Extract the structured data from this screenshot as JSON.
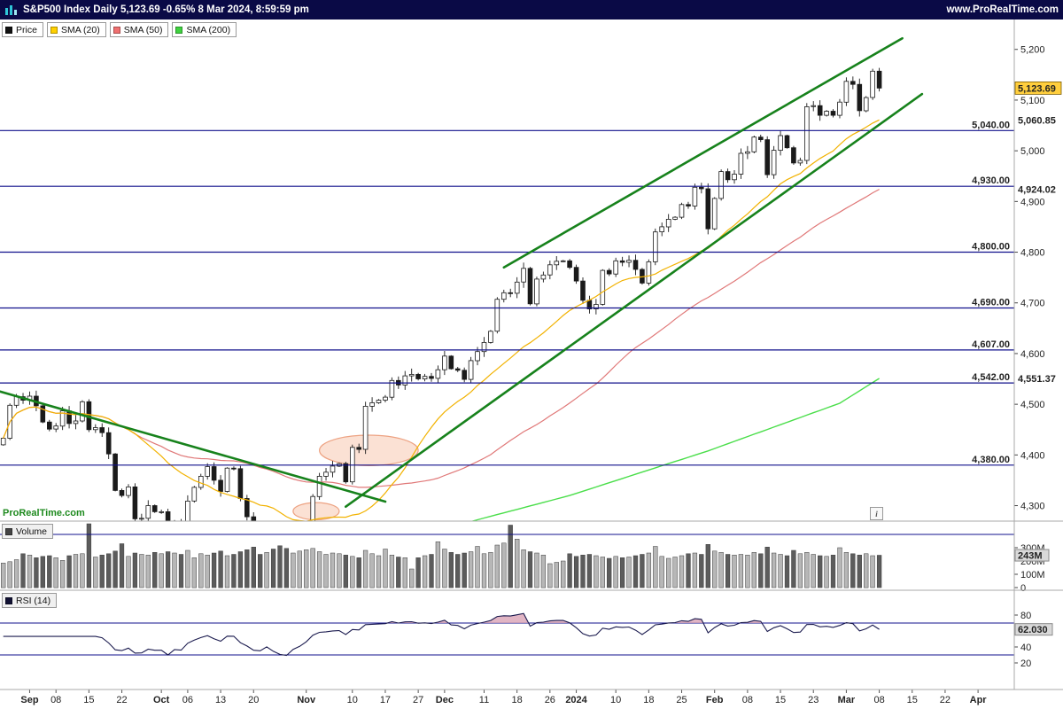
{
  "top_bar": {
    "title": "S&P500 Index Daily 5,123.69 -0.65% 8 Mar 2024, 8:59:59 pm",
    "website": "www.ProRealTime.com",
    "bg_color": "#0a0a46"
  },
  "legend": {
    "items": [
      {
        "label": "Price",
        "color": "#111111"
      },
      {
        "label": "SMA (20)",
        "color": "#ffd000"
      },
      {
        "label": "SMA (50)",
        "color": "#f07070"
      },
      {
        "label": "SMA (200)",
        "color": "#3fd23f"
      }
    ]
  },
  "watermark": "ProRealTime.com",
  "info_icon": "i",
  "price_axis": {
    "ticks": [
      {
        "label": "5,200",
        "price": 5200
      },
      {
        "label": "5,100",
        "price": 5100
      },
      {
        "label": "5,000",
        "price": 5000
      },
      {
        "label": "4,900",
        "price": 4900
      },
      {
        "label": "4,800",
        "price": 4800
      },
      {
        "label": "4,700",
        "price": 4700
      },
      {
        "label": "4,600",
        "price": 4600
      },
      {
        "label": "4,500",
        "price": 4500
      },
      {
        "label": "4,400",
        "price": 4400
      },
      {
        "label": "4,300",
        "price": 4300
      }
    ],
    "last_price_tag": {
      "label": "5,123.69",
      "price": 5123.69,
      "bg": "#ffce3d"
    },
    "indicator_tags": [
      {
        "label": "5,060.85",
        "price": 5060.85,
        "color": "#dd9404"
      },
      {
        "label": "4,924.02",
        "price": 4924.02,
        "color": "#e06060"
      },
      {
        "label": "4,551.37",
        "price": 4551.37,
        "color": "#dd9404"
      }
    ]
  },
  "levels": {
    "color": "#10108c",
    "items": [
      {
        "label": "5,040.00",
        "price": 5040
      },
      {
        "label": "4,930.00",
        "price": 4930
      },
      {
        "label": "4,800.00",
        "price": 4800
      },
      {
        "label": "4,690.00",
        "price": 4690
      },
      {
        "label": "4,607.00",
        "price": 4607
      },
      {
        "label": "4,542.00",
        "price": 4542
      },
      {
        "label": "4,380.00",
        "price": 4380
      }
    ]
  },
  "trendlines": {
    "color": "#17821c",
    "width": 2.6,
    "items": [
      {
        "name": "downtrend-line",
        "from": {
          "day": -0.5,
          "price": 4525
        },
        "to": {
          "day": 58,
          "price": 4308
        }
      },
      {
        "name": "channel-lower-line",
        "from": {
          "day": 52,
          "price": 4298
        },
        "to": {
          "day": 139.5,
          "price": 5112
        }
      },
      {
        "name": "channel-upper-line",
        "from": {
          "day": 76,
          "price": 4770
        },
        "to": {
          "day": 136.5,
          "price": 5222
        }
      }
    ]
  },
  "annotations": {
    "fill": "#f8cdb8",
    "stroke": "#eda383",
    "ellipses": [
      {
        "day": 55.5,
        "price": 4409,
        "rx_days": 7.5,
        "ry_points": 30
      },
      {
        "day": 47.5,
        "price": 4289,
        "rx_days": 3.5,
        "ry_points": 17
      }
    ]
  },
  "volume_panel": {
    "legend": "Volume",
    "color": "#444444",
    "ticks": [
      {
        "label": "300M",
        "value": 300
      },
      {
        "label": "200M",
        "value": 200
      },
      {
        "label": "100M",
        "value": 100
      },
      {
        "label": "0",
        "value": 0
      }
    ],
    "current": {
      "label": "243M",
      "value": 243
    },
    "level_lines": [
      400
    ]
  },
  "rsi_panel": {
    "legend": "RSI (14)",
    "color": "#111133",
    "ticks": [
      {
        "label": "80",
        "value": 80
      },
      {
        "label": "40",
        "value": 40
      },
      {
        "label": "20",
        "value": 20
      }
    ],
    "current": {
      "label": "62.030",
      "value": 62.03
    },
    "level_lines": [
      70,
      30
    ],
    "zone_fill": "#d9a3b5"
  },
  "x_axis": {
    "ticks": [
      {
        "label": "Sep",
        "day": 4,
        "bold": true
      },
      {
        "label": "08",
        "day": 8,
        "bold": false
      },
      {
        "label": "15",
        "day": 13,
        "bold": false
      },
      {
        "label": "22",
        "day": 18,
        "bold": false
      },
      {
        "label": "Oct",
        "day": 24,
        "bold": true
      },
      {
        "label": "06",
        "day": 28,
        "bold": false
      },
      {
        "label": "13",
        "day": 33,
        "bold": false
      },
      {
        "label": "20",
        "day": 38,
        "bold": false
      },
      {
        "label": "Nov",
        "day": 46,
        "bold": true
      },
      {
        "label": "10",
        "day": 53,
        "bold": false
      },
      {
        "label": "17",
        "day": 58,
        "bold": false
      },
      {
        "label": "27",
        "day": 63,
        "bold": false
      },
      {
        "label": "Dec",
        "day": 67,
        "bold": true
      },
      {
        "label": "11",
        "day": 73,
        "bold": false
      },
      {
        "label": "18",
        "day": 78,
        "bold": false
      },
      {
        "label": "26",
        "day": 83,
        "bold": false
      },
      {
        "label": "2024",
        "day": 87,
        "bold": true
      },
      {
        "label": "10",
        "day": 93,
        "bold": false
      },
      {
        "label": "18",
        "day": 98,
        "bold": false
      },
      {
        "label": "25",
        "day": 103,
        "bold": false
      },
      {
        "label": "Feb",
        "day": 108,
        "bold": true
      },
      {
        "label": "08",
        "day": 113,
        "bold": false
      },
      {
        "label": "15",
        "day": 118,
        "bold": false
      },
      {
        "label": "23",
        "day": 123,
        "bold": false
      },
      {
        "label": "Mar",
        "day": 128,
        "bold": true
      },
      {
        "label": "08",
        "day": 133,
        "bold": false
      },
      {
        "label": "15",
        "day": 138,
        "bold": false
      },
      {
        "label": "22",
        "day": 143,
        "bold": false
      },
      {
        "label": "Apr",
        "day": 148,
        "bold": true
      }
    ]
  },
  "chart_data": {
    "type": "candlestick",
    "symbol": "S&P500 Index",
    "timeframe": "Daily",
    "last_close": 5123.69,
    "change_pct": "-0.65%",
    "timestamp": "8 Mar 2024, 8:59:59 pm",
    "first_open": 4420,
    "closes": [
      4433,
      4498,
      4515,
      4508,
      4516,
      4497,
      4465,
      4451,
      4457,
      4487,
      4462,
      4467,
      4505,
      4450,
      4454,
      4444,
      4402,
      4330,
      4320,
      4337,
      4274,
      4275,
      4300,
      4288,
      4288,
      4229,
      4264,
      4258,
      4309,
      4336,
      4358,
      4377,
      4350,
      4328,
      4374,
      4373,
      4314,
      4278,
      4224,
      4217,
      4247,
      4187,
      4137,
      4117,
      4167,
      4194,
      4238,
      4318,
      4358,
      4366,
      4378,
      4383,
      4347,
      4415,
      4411,
      4496,
      4503,
      4508,
      4514,
      4547,
      4538,
      4556,
      4559,
      4550,
      4555,
      4551,
      4568,
      4595,
      4570,
      4567,
      4549,
      4586,
      4604,
      4622,
      4644,
      4707,
      4720,
      4719,
      4741,
      4768,
      4698,
      4747,
      4755,
      4775,
      4782,
      4783,
      4770,
      4743,
      4705,
      4688,
      4697,
      4764,
      4757,
      4783,
      4780,
      4784,
      4766,
      4739,
      4781,
      4840,
      4850,
      4865,
      4869,
      4894,
      4891,
      4928,
      4925,
      4846,
      4906,
      4959,
      4943,
      4954,
      4995,
      4998,
      5027,
      5022,
      4953,
      5001,
      5030,
      5006,
      4976,
      4981,
      5087,
      5089,
      5070,
      5078,
      5070,
      5096,
      5137,
      5131,
      5079,
      5105,
      5157,
      5123.69
    ],
    "volumes_m": [
      185,
      195,
      210,
      255,
      245,
      225,
      235,
      240,
      225,
      205,
      240,
      250,
      255,
      480,
      230,
      245,
      255,
      275,
      330,
      235,
      260,
      250,
      245,
      265,
      255,
      270,
      260,
      250,
      280,
      225,
      255,
      245,
      260,
      275,
      240,
      250,
      270,
      285,
      305,
      250,
      265,
      290,
      315,
      295,
      260,
      275,
      285,
      295,
      270,
      250,
      260,
      255,
      245,
      235,
      225,
      280,
      255,
      240,
      290,
      245,
      230,
      225,
      140,
      225,
      240,
      250,
      345,
      290,
      265,
      250,
      260,
      270,
      310,
      255,
      265,
      320,
      335,
      470,
      365,
      285,
      270,
      260,
      245,
      180,
      190,
      200,
      255,
      235,
      245,
      250,
      240,
      230,
      220,
      235,
      225,
      230,
      240,
      250,
      260,
      310,
      235,
      220,
      230,
      240,
      255,
      260,
      250,
      325,
      275,
      265,
      250,
      245,
      250,
      245,
      265,
      255,
      305,
      260,
      250,
      240,
      280,
      255,
      265,
      250,
      240,
      235,
      245,
      300,
      265,
      255,
      245,
      255,
      240,
      243
    ],
    "sma20_window": 20,
    "sma50_window": 50,
    "sma200_anchors": [
      [
        0,
        4150
      ],
      [
        45,
        4210
      ],
      [
        67,
        4255
      ],
      [
        86,
        4320
      ],
      [
        107,
        4408
      ],
      [
        127,
        4502
      ],
      [
        133,
        4551
      ]
    ],
    "colors": {
      "sma20": "#f2b200",
      "sma50": "#e07878",
      "sma200": "#4ade4a",
      "up": "#ffffff",
      "down": "#1a1a1a"
    }
  }
}
